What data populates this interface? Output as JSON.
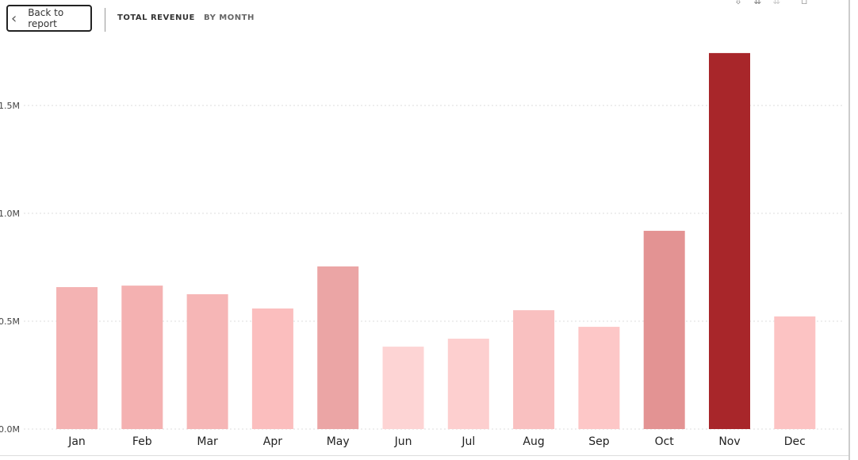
{
  "header": {
    "back_label": "Back to report",
    "title": "TOTAL REVENUE",
    "subtitle": "BY MONTH"
  },
  "chart_data": {
    "type": "bar",
    "title": "TOTAL REVENUE BY MONTH",
    "categories": [
      "Jan",
      "Feb",
      "Mar",
      "Apr",
      "May",
      "Jun",
      "Jul",
      "Aug",
      "Sep",
      "Oct",
      "Nov",
      "Dec"
    ],
    "values": [
      0.658,
      0.665,
      0.625,
      0.559,
      0.754,
      0.382,
      0.419,
      0.551,
      0.474,
      0.919,
      1.743,
      0.522
    ],
    "unit": "M",
    "ylim": [
      0,
      1.74
    ],
    "yticks": [
      0,
      0.5,
      1.0,
      1.5
    ],
    "ytick_labels": [
      "0.0M",
      "0.5M",
      "1.0M",
      "1.5M"
    ],
    "grid": true,
    "colors": [
      "#f4b3b3",
      "#f4b1b1",
      "#f6b6b6",
      "#fbbebe",
      "#eba5a5",
      "#fdd4d4",
      "#fdcfcf",
      "#f9c0c0",
      "#fdc7c7",
      "#e39393",
      "#a8262a",
      "#fcc3c3"
    ]
  }
}
